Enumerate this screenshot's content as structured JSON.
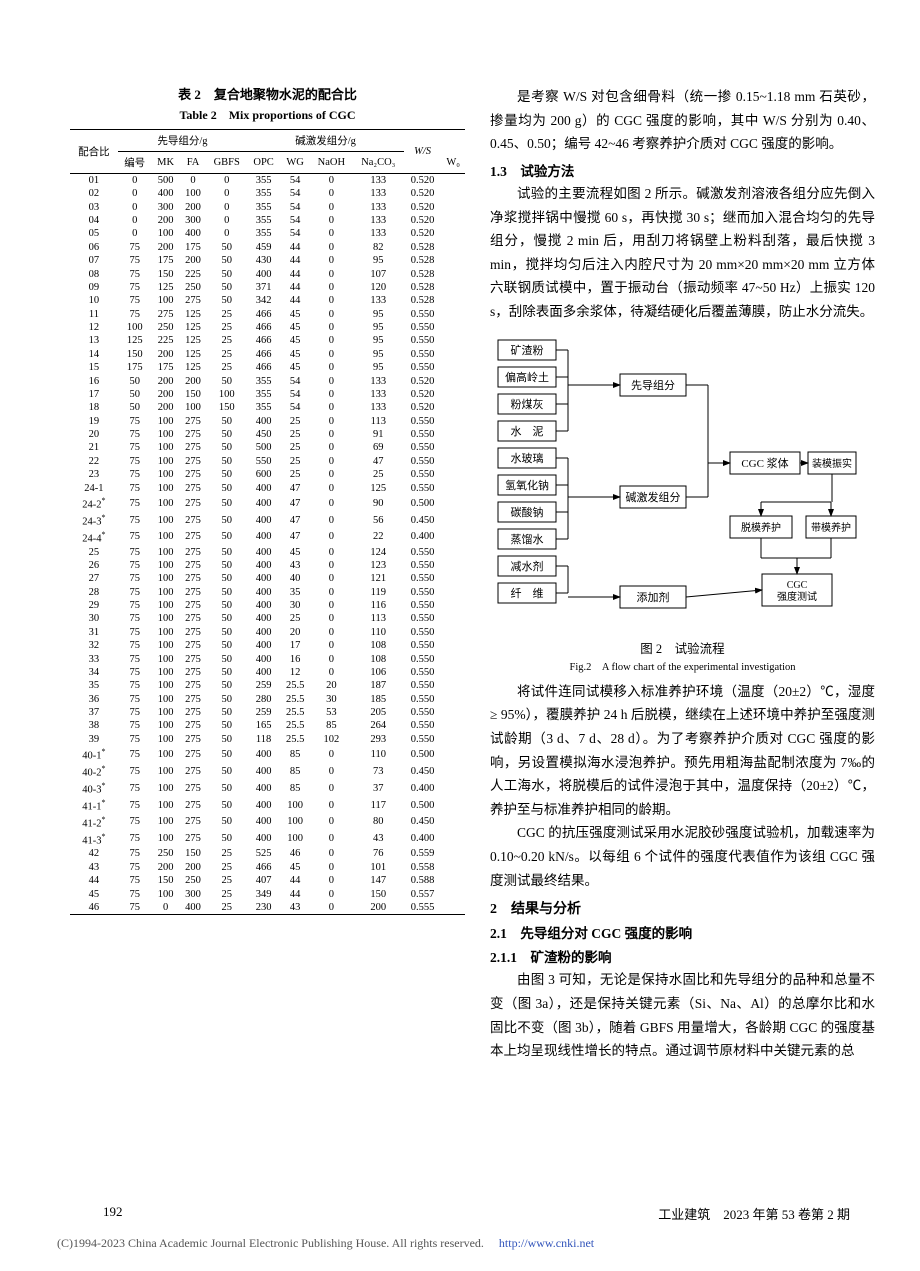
{
  "table": {
    "caption_cn": "表 2　复合地聚物水泥的配合比",
    "caption_en": "Table 2　Mix proportions of CGC",
    "header_top": {
      "mix": "配合比",
      "precursor": "先导组分/g",
      "activator": "碱激发组分/g",
      "ws": "W/S"
    },
    "cols": [
      "编号",
      "MK",
      "FA",
      "GBFS",
      "OPC",
      "WG",
      "NaOH",
      "Na₂CO₃",
      "W₀"
    ],
    "rows": [
      [
        "01",
        "0",
        "500",
        "0",
        "0",
        "355",
        "54",
        "0",
        "133",
        "0.520"
      ],
      [
        "02",
        "0",
        "400",
        "100",
        "0",
        "355",
        "54",
        "0",
        "133",
        "0.520"
      ],
      [
        "03",
        "0",
        "300",
        "200",
        "0",
        "355",
        "54",
        "0",
        "133",
        "0.520"
      ],
      [
        "04",
        "0",
        "200",
        "300",
        "0",
        "355",
        "54",
        "0",
        "133",
        "0.520"
      ],
      [
        "05",
        "0",
        "100",
        "400",
        "0",
        "355",
        "54",
        "0",
        "133",
        "0.520"
      ],
      [
        "06",
        "75",
        "200",
        "175",
        "50",
        "459",
        "44",
        "0",
        "82",
        "0.528"
      ],
      [
        "07",
        "75",
        "175",
        "200",
        "50",
        "430",
        "44",
        "0",
        "95",
        "0.528"
      ],
      [
        "08",
        "75",
        "150",
        "225",
        "50",
        "400",
        "44",
        "0",
        "107",
        "0.528"
      ],
      [
        "09",
        "75",
        "125",
        "250",
        "50",
        "371",
        "44",
        "0",
        "120",
        "0.528"
      ],
      [
        "10",
        "75",
        "100",
        "275",
        "50",
        "342",
        "44",
        "0",
        "133",
        "0.528"
      ],
      [
        "11",
        "75",
        "275",
        "125",
        "25",
        "466",
        "45",
        "0",
        "95",
        "0.550"
      ],
      [
        "12",
        "100",
        "250",
        "125",
        "25",
        "466",
        "45",
        "0",
        "95",
        "0.550"
      ],
      [
        "13",
        "125",
        "225",
        "125",
        "25",
        "466",
        "45",
        "0",
        "95",
        "0.550"
      ],
      [
        "14",
        "150",
        "200",
        "125",
        "25",
        "466",
        "45",
        "0",
        "95",
        "0.550"
      ],
      [
        "15",
        "175",
        "175",
        "125",
        "25",
        "466",
        "45",
        "0",
        "95",
        "0.550"
      ],
      [
        "16",
        "50",
        "200",
        "200",
        "50",
        "355",
        "54",
        "0",
        "133",
        "0.520"
      ],
      [
        "17",
        "50",
        "200",
        "150",
        "100",
        "355",
        "54",
        "0",
        "133",
        "0.520"
      ],
      [
        "18",
        "50",
        "200",
        "100",
        "150",
        "355",
        "54",
        "0",
        "133",
        "0.520"
      ],
      [
        "19",
        "75",
        "100",
        "275",
        "50",
        "400",
        "25",
        "0",
        "113",
        "0.550"
      ],
      [
        "20",
        "75",
        "100",
        "275",
        "50",
        "450",
        "25",
        "0",
        "91",
        "0.550"
      ],
      [
        "21",
        "75",
        "100",
        "275",
        "50",
        "500",
        "25",
        "0",
        "69",
        "0.550"
      ],
      [
        "22",
        "75",
        "100",
        "275",
        "50",
        "550",
        "25",
        "0",
        "47",
        "0.550"
      ],
      [
        "23",
        "75",
        "100",
        "275",
        "50",
        "600",
        "25",
        "0",
        "25",
        "0.550"
      ],
      [
        "24-1",
        "75",
        "100",
        "275",
        "50",
        "400",
        "47",
        "0",
        "125",
        "0.550"
      ],
      [
        "24-2*",
        "75",
        "100",
        "275",
        "50",
        "400",
        "47",
        "0",
        "90",
        "0.500"
      ],
      [
        "24-3*",
        "75",
        "100",
        "275",
        "50",
        "400",
        "47",
        "0",
        "56",
        "0.450"
      ],
      [
        "24-4*",
        "75",
        "100",
        "275",
        "50",
        "400",
        "47",
        "0",
        "22",
        "0.400"
      ],
      [
        "25",
        "75",
        "100",
        "275",
        "50",
        "400",
        "45",
        "0",
        "124",
        "0.550"
      ],
      [
        "26",
        "75",
        "100",
        "275",
        "50",
        "400",
        "43",
        "0",
        "123",
        "0.550"
      ],
      [
        "27",
        "75",
        "100",
        "275",
        "50",
        "400",
        "40",
        "0",
        "121",
        "0.550"
      ],
      [
        "28",
        "75",
        "100",
        "275",
        "50",
        "400",
        "35",
        "0",
        "119",
        "0.550"
      ],
      [
        "29",
        "75",
        "100",
        "275",
        "50",
        "400",
        "30",
        "0",
        "116",
        "0.550"
      ],
      [
        "30",
        "75",
        "100",
        "275",
        "50",
        "400",
        "25",
        "0",
        "113",
        "0.550"
      ],
      [
        "31",
        "75",
        "100",
        "275",
        "50",
        "400",
        "20",
        "0",
        "110",
        "0.550"
      ],
      [
        "32",
        "75",
        "100",
        "275",
        "50",
        "400",
        "17",
        "0",
        "108",
        "0.550"
      ],
      [
        "33",
        "75",
        "100",
        "275",
        "50",
        "400",
        "16",
        "0",
        "108",
        "0.550"
      ],
      [
        "34",
        "75",
        "100",
        "275",
        "50",
        "400",
        "12",
        "0",
        "106",
        "0.550"
      ],
      [
        "35",
        "75",
        "100",
        "275",
        "50",
        "259",
        "25.5",
        "20",
        "187",
        "0.550"
      ],
      [
        "36",
        "75",
        "100",
        "275",
        "50",
        "280",
        "25.5",
        "30",
        "185",
        "0.550"
      ],
      [
        "37",
        "75",
        "100",
        "275",
        "50",
        "259",
        "25.5",
        "53",
        "205",
        "0.550"
      ],
      [
        "38",
        "75",
        "100",
        "275",
        "50",
        "165",
        "25.5",
        "85",
        "264",
        "0.550"
      ],
      [
        "39",
        "75",
        "100",
        "275",
        "50",
        "118",
        "25.5",
        "102",
        "293",
        "0.550"
      ],
      [
        "40-1*",
        "75",
        "100",
        "275",
        "50",
        "400",
        "85",
        "0",
        "110",
        "0.500"
      ],
      [
        "40-2*",
        "75",
        "100",
        "275",
        "50",
        "400",
        "85",
        "0",
        "73",
        "0.450"
      ],
      [
        "40-3*",
        "75",
        "100",
        "275",
        "50",
        "400",
        "85",
        "0",
        "37",
        "0.400"
      ],
      [
        "41-1*",
        "75",
        "100",
        "275",
        "50",
        "400",
        "100",
        "0",
        "117",
        "0.500"
      ],
      [
        "41-2*",
        "75",
        "100",
        "275",
        "50",
        "400",
        "100",
        "0",
        "80",
        "0.450"
      ],
      [
        "41-3*",
        "75",
        "100",
        "275",
        "50",
        "400",
        "100",
        "0",
        "43",
        "0.400"
      ],
      [
        "42",
        "75",
        "250",
        "150",
        "25",
        "525",
        "46",
        "0",
        "76",
        "0.559"
      ],
      [
        "43",
        "75",
        "200",
        "200",
        "25",
        "466",
        "45",
        "0",
        "101",
        "0.558"
      ],
      [
        "44",
        "75",
        "150",
        "250",
        "25",
        "407",
        "44",
        "0",
        "147",
        "0.588"
      ],
      [
        "45",
        "75",
        "100",
        "300",
        "25",
        "349",
        "44",
        "0",
        "150",
        "0.557"
      ],
      [
        "46",
        "75",
        "0",
        "400",
        "25",
        "230",
        "43",
        "0",
        "200",
        "0.555"
      ]
    ]
  },
  "right": {
    "p1": "是考察 W/S 对包含细骨料（统一掺 0.15~1.18 mm 石英砂，掺量均为 200 g）的 CGC 强度的影响，其中 W/S 分别为 0.40、0.45、0.50；编号 42~46 考察养护介质对 CGC 强度的影响。",
    "h13": "1.3　试验方法",
    "p2": "试验的主要流程如图 2 所示。碱激发剂溶液各组分应先倒入净浆搅拌锅中慢搅 60 s，再快搅 30 s；继而加入混合均匀的先导组分，慢搅 2 min 后，用刮刀将锅壁上粉料刮落，最后快搅 3 min，搅拌均匀后注入内腔尺寸为 20 mm×20 mm×20 mm 立方体六联钢质试模中，置于振动台（振动频率 47~50 Hz）上振实 120 s，刮除表面多余浆体，待凝结硬化后覆盖薄膜，防止水分流失。",
    "fig2_cn": "图 2　试验流程",
    "fig2_en": "Fig.2　A flow chart of the experimental investigation",
    "p3": "将试件连同试模移入标准养护环境（温度（20±2）℃，湿度 ≥ 95%），覆膜养护 24 h 后脱模，继续在上述环境中养护至强度测试龄期（3 d、7 d、28 d）。为了考察养护介质对 CGC 强度的影响，另设置模拟海水浸泡养护。预先用粗海盐配制浓度为 7‰的人工海水，将脱模后的试件浸泡于其中，温度保持（20±2）℃，养护至与标准养护相同的龄期。",
    "p4": "CGC 的抗压强度测试采用水泥胶砂强度试验机，加载速率为 0.10~0.20 kN/s。以每组 6 个试件的强度代表值作为该组 CGC 强度测试最终结果。",
    "h2": "2　结果与分析",
    "h21": "2.1　先导组分对 CGC 强度的影响",
    "h211": "2.1.1　矿渣粉的影响",
    "p5": "由图 3 可知，无论是保持水固比和先导组分的品种和总量不变（图 3a），还是保持关键元素（Si、Na、Al）的总摩尔比和水固比不变（图 3b），随着 GBFS 用量增大，各龄期 CGC 的强度基本上均呈现线性增长的特点。通过调节原材料中关键元素的总"
  },
  "flow": {
    "left_items": [
      "矿渣粉",
      "偏高岭土",
      "粉煤灰",
      "水　泥",
      "水玻璃",
      "氢氧化钠",
      "碳酸钠",
      "蒸馏水",
      "减水剂",
      "纤　维"
    ],
    "labels": {
      "precursor": "先导组分",
      "activator": "碱激发组分",
      "additive": "添加剂",
      "slurry": "CGC 浆体",
      "cast": "装模振实",
      "demold": "脱模养护",
      "mold": "带模养护",
      "test": "CGC\n强度测试"
    },
    "box_stroke": "#000000",
    "box_fill": "#ffffff",
    "font_size": 11
  },
  "footer": {
    "page": "192",
    "journal": "工业建筑　2023 年第 53 卷第 2 期"
  },
  "copyright": {
    "text": "(C)1994-2023 China Academic Journal Electronic Publishing House. All rights reserved.",
    "url": "http://www.cnki.net"
  }
}
